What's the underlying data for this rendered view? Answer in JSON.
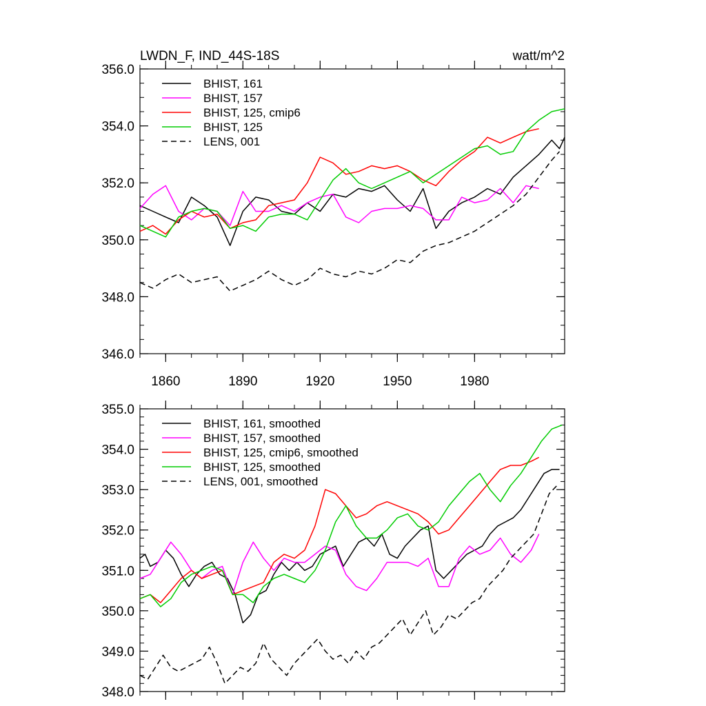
{
  "chart_data": [
    {
      "type": "line",
      "title_left": "LWDN_F, IND_44S-18S",
      "title_right": "watt/m^2",
      "xlim": [
        1850,
        2015
      ],
      "ylim": [
        346,
        356
      ],
      "yticks": [
        346,
        348,
        350,
        352,
        354,
        356
      ],
      "ytick_labels": [
        "346.0",
        "348.0",
        "350.0",
        "352.0",
        "354.0",
        "356.0"
      ],
      "xticks": [
        1860,
        1890,
        1920,
        1950,
        1980
      ],
      "xtick_labels": [
        "1860",
        "1890",
        "1920",
        "1950",
        "1980"
      ],
      "legend_position": "top-left",
      "series": [
        {
          "name": "BHIST, 161",
          "color": "#000000",
          "dash": "solid",
          "x": [
            1850,
            1855,
            1860,
            1865,
            1870,
            1875,
            1880,
            1885,
            1890,
            1895,
            1900,
            1905,
            1910,
            1915,
            1920,
            1925,
            1930,
            1935,
            1940,
            1945,
            1950,
            1955,
            1960,
            1965,
            1970,
            1975,
            1980,
            1985,
            1990,
            1995,
            2000,
            2005,
            2010,
            2013,
            2015
          ],
          "values": [
            351.2,
            351.0,
            350.8,
            350.6,
            351.5,
            351.2,
            350.8,
            349.8,
            351.0,
            351.5,
            351.4,
            351.0,
            350.9,
            351.3,
            351.0,
            351.6,
            351.5,
            351.8,
            351.7,
            351.9,
            351.4,
            351.0,
            351.8,
            350.4,
            351.0,
            351.3,
            351.5,
            351.8,
            351.6,
            352.2,
            352.6,
            353.0,
            353.5,
            353.2,
            353.6
          ]
        },
        {
          "name": "BHIST, 157",
          "color": "#ff00ff",
          "dash": "solid",
          "x": [
            1850,
            1855,
            1860,
            1865,
            1870,
            1875,
            1880,
            1885,
            1890,
            1895,
            1900,
            1905,
            1910,
            1915,
            1920,
            1925,
            1930,
            1935,
            1940,
            1945,
            1950,
            1955,
            1960,
            1965,
            1970,
            1975,
            1980,
            1985,
            1990,
            1995,
            2000,
            2005
          ],
          "values": [
            351.1,
            351.6,
            351.9,
            351.0,
            350.7,
            351.1,
            351.0,
            350.5,
            351.7,
            351.0,
            351.0,
            351.2,
            351.0,
            351.3,
            351.5,
            351.6,
            350.8,
            350.6,
            351.0,
            351.1,
            351.1,
            351.2,
            351.1,
            350.7,
            350.7,
            351.5,
            351.3,
            351.4,
            351.8,
            351.3,
            351.9,
            351.8
          ]
        },
        {
          "name": "BHIST, 125, cmip6",
          "color": "#ff0000",
          "dash": "solid",
          "x": [
            1850,
            1855,
            1860,
            1865,
            1870,
            1875,
            1880,
            1885,
            1890,
            1895,
            1900,
            1905,
            1910,
            1915,
            1920,
            1925,
            1930,
            1935,
            1940,
            1945,
            1950,
            1955,
            1960,
            1965,
            1970,
            1975,
            1980,
            1985,
            1990,
            1995,
            2000,
            2005
          ],
          "values": [
            350.3,
            350.5,
            350.2,
            350.7,
            351.0,
            350.8,
            350.9,
            350.4,
            350.6,
            350.7,
            351.2,
            351.3,
            351.4,
            352.0,
            352.9,
            352.7,
            352.3,
            352.4,
            352.6,
            352.5,
            352.6,
            352.4,
            352.1,
            351.9,
            352.4,
            352.8,
            353.1,
            353.6,
            353.4,
            353.6,
            353.8,
            353.9
          ]
        },
        {
          "name": "BHIST, 125",
          "color": "#00cc00",
          "dash": "solid",
          "x": [
            1850,
            1855,
            1860,
            1865,
            1870,
            1875,
            1880,
            1885,
            1890,
            1895,
            1900,
            1905,
            1910,
            1915,
            1920,
            1925,
            1930,
            1935,
            1940,
            1945,
            1950,
            1955,
            1960,
            1965,
            1970,
            1975,
            1980,
            1985,
            1990,
            1995,
            2000,
            2005,
            2010,
            2015
          ],
          "values": [
            350.5,
            350.3,
            350.1,
            350.8,
            351.0,
            351.1,
            351.0,
            350.4,
            350.5,
            350.3,
            350.8,
            350.9,
            350.9,
            350.7,
            351.4,
            352.1,
            352.5,
            352.0,
            351.8,
            352.0,
            352.2,
            352.4,
            352.0,
            352.3,
            352.6,
            352.9,
            353.2,
            353.3,
            353.0,
            353.1,
            353.8,
            354.2,
            354.5,
            354.6
          ]
        },
        {
          "name": "LENS, 001",
          "color": "#000000",
          "dash": "dashed",
          "x": [
            1850,
            1855,
            1860,
            1865,
            1870,
            1875,
            1880,
            1885,
            1890,
            1895,
            1900,
            1905,
            1910,
            1915,
            1920,
            1925,
            1930,
            1935,
            1940,
            1945,
            1950,
            1955,
            1960,
            1965,
            1970,
            1975,
            1980,
            1985,
            1990,
            1995,
            2000,
            2005,
            2010,
            2013
          ],
          "values": [
            348.5,
            348.3,
            348.6,
            348.8,
            348.5,
            348.6,
            348.7,
            348.2,
            348.4,
            348.6,
            348.9,
            348.6,
            348.4,
            348.6,
            349.0,
            348.8,
            348.7,
            348.9,
            348.8,
            349.0,
            349.3,
            349.2,
            349.6,
            349.8,
            349.9,
            350.1,
            350.3,
            350.6,
            350.9,
            351.2,
            351.6,
            352.2,
            352.8,
            353.1
          ]
        }
      ]
    },
    {
      "type": "line",
      "xlim": [
        1850,
        2015
      ],
      "ylim": [
        348,
        355
      ],
      "yticks": [
        348,
        349,
        350,
        351,
        352,
        353,
        354,
        355
      ],
      "ytick_labels": [
        "348.0",
        "349.0",
        "350.0",
        "351.0",
        "352.0",
        "353.0",
        "354.0",
        "355.0"
      ],
      "xticks": [
        1860,
        1890,
        1920,
        1950,
        1980
      ],
      "legend_position": "top-left",
      "series": [
        {
          "name": "BHIST, 161, smoothed",
          "color": "#000000",
          "dash": "solid",
          "x": [
            1850,
            1852,
            1854,
            1857,
            1860,
            1863,
            1866,
            1869,
            1872,
            1875,
            1878,
            1881,
            1884,
            1887,
            1890,
            1893,
            1896,
            1899,
            1902,
            1905,
            1908,
            1911,
            1914,
            1917,
            1920,
            1923,
            1926,
            1929,
            1932,
            1935,
            1938,
            1941,
            1944,
            1947,
            1950,
            1953,
            1956,
            1959,
            1962,
            1965,
            1968,
            1971,
            1974,
            1977,
            1980,
            1983,
            1986,
            1989,
            1992,
            1995,
            1998,
            2001,
            2004,
            2007,
            2010,
            2013
          ],
          "values": [
            351.3,
            351.4,
            351.1,
            351.2,
            351.5,
            351.3,
            350.9,
            350.6,
            350.9,
            351.1,
            351.2,
            350.9,
            350.8,
            350.4,
            349.7,
            349.9,
            350.4,
            350.5,
            350.9,
            351.2,
            351.0,
            351.2,
            351.0,
            351.1,
            351.4,
            351.5,
            351.6,
            351.1,
            351.4,
            351.7,
            351.8,
            351.6,
            351.9,
            351.4,
            351.3,
            351.6,
            351.8,
            352.0,
            352.1,
            351.0,
            350.8,
            351.0,
            351.2,
            351.4,
            351.5,
            351.6,
            351.9,
            352.1,
            352.2,
            352.3,
            352.5,
            352.8,
            353.1,
            353.4,
            353.5,
            353.5
          ]
        },
        {
          "name": "BHIST, 157, smoothed",
          "color": "#ff00ff",
          "dash": "solid",
          "x": [
            1850,
            1854,
            1858,
            1862,
            1866,
            1870,
            1874,
            1878,
            1882,
            1886,
            1890,
            1894,
            1898,
            1902,
            1906,
            1910,
            1914,
            1918,
            1922,
            1926,
            1930,
            1934,
            1938,
            1942,
            1946,
            1950,
            1954,
            1958,
            1962,
            1966,
            1970,
            1974,
            1978,
            1982,
            1986,
            1990,
            1994,
            1998,
            2002,
            2005
          ],
          "values": [
            350.8,
            350.9,
            351.3,
            351.7,
            351.4,
            351.0,
            350.8,
            351.0,
            351.1,
            350.4,
            351.2,
            351.7,
            351.3,
            351.0,
            351.3,
            351.2,
            351.2,
            351.4,
            351.6,
            351.5,
            350.9,
            350.6,
            350.5,
            350.8,
            351.2,
            351.2,
            351.2,
            351.1,
            351.3,
            350.6,
            350.6,
            351.3,
            351.6,
            351.4,
            351.5,
            351.8,
            351.4,
            351.2,
            351.5,
            351.9
          ]
        },
        {
          "name": "BHIST, 125, cmip6, smoothed",
          "color": "#ff0000",
          "dash": "solid",
          "x": [
            1850,
            1854,
            1858,
            1862,
            1866,
            1870,
            1874,
            1878,
            1882,
            1886,
            1890,
            1894,
            1898,
            1902,
            1906,
            1910,
            1914,
            1918,
            1922,
            1926,
            1930,
            1934,
            1938,
            1942,
            1946,
            1950,
            1954,
            1958,
            1962,
            1966,
            1970,
            1974,
            1978,
            1982,
            1986,
            1990,
            1994,
            1998,
            2002,
            2005
          ],
          "values": [
            350.3,
            350.4,
            350.2,
            350.5,
            350.8,
            351.0,
            350.8,
            350.9,
            351.0,
            350.4,
            350.5,
            350.6,
            350.7,
            351.2,
            351.4,
            351.3,
            351.5,
            352.1,
            353.0,
            352.9,
            352.6,
            352.3,
            352.4,
            352.6,
            352.7,
            352.6,
            352.5,
            352.4,
            352.2,
            351.9,
            352.0,
            352.3,
            352.6,
            352.9,
            353.2,
            353.5,
            353.6,
            353.6,
            353.7,
            353.8
          ]
        },
        {
          "name": "BHIST, 125, smoothed",
          "color": "#00cc00",
          "dash": "solid",
          "x": [
            1850,
            1854,
            1858,
            1862,
            1866,
            1870,
            1874,
            1878,
            1882,
            1886,
            1890,
            1894,
            1898,
            1902,
            1906,
            1910,
            1914,
            1918,
            1922,
            1926,
            1930,
            1934,
            1938,
            1942,
            1946,
            1950,
            1954,
            1958,
            1962,
            1966,
            1970,
            1974,
            1978,
            1982,
            1986,
            1990,
            1994,
            1998,
            2002,
            2006,
            2010,
            2014
          ],
          "values": [
            350.3,
            350.4,
            350.1,
            350.3,
            350.7,
            350.9,
            351.0,
            351.1,
            351.0,
            350.4,
            350.4,
            350.2,
            350.6,
            350.8,
            350.9,
            350.8,
            350.7,
            351.0,
            351.5,
            352.2,
            352.6,
            352.1,
            351.8,
            351.8,
            352.0,
            352.3,
            352.4,
            352.1,
            352.0,
            352.2,
            352.6,
            352.9,
            353.2,
            353.4,
            353.0,
            352.7,
            353.1,
            353.4,
            353.8,
            354.2,
            354.5,
            354.6
          ]
        },
        {
          "name": "LENS, 001, smoothed",
          "color": "#000000",
          "dash": "dashed",
          "x": [
            1850,
            1853,
            1856,
            1859,
            1862,
            1865,
            1868,
            1871,
            1874,
            1877,
            1880,
            1883,
            1886,
            1889,
            1892,
            1895,
            1898,
            1901,
            1904,
            1907,
            1910,
            1913,
            1916,
            1919,
            1922,
            1925,
            1928,
            1931,
            1934,
            1937,
            1940,
            1943,
            1946,
            1949,
            1952,
            1955,
            1958,
            1961,
            1964,
            1967,
            1970,
            1973,
            1976,
            1979,
            1982,
            1985,
            1988,
            1991,
            1994,
            1997,
            2000,
            2003,
            2006,
            2009,
            2012
          ],
          "values": [
            348.4,
            348.3,
            348.6,
            348.9,
            348.6,
            348.5,
            348.6,
            348.7,
            348.8,
            349.1,
            348.7,
            348.2,
            348.4,
            348.6,
            348.5,
            348.7,
            349.2,
            348.8,
            348.6,
            348.4,
            348.7,
            348.9,
            349.1,
            349.3,
            349.0,
            348.8,
            348.9,
            348.7,
            349.0,
            348.8,
            349.1,
            349.2,
            349.4,
            349.6,
            349.8,
            349.4,
            349.7,
            350.0,
            349.4,
            349.6,
            349.9,
            349.8,
            350.0,
            350.2,
            350.3,
            350.6,
            350.8,
            351.0,
            351.3,
            351.5,
            351.7,
            351.9,
            352.4,
            352.9,
            353.1
          ]
        }
      ]
    }
  ]
}
